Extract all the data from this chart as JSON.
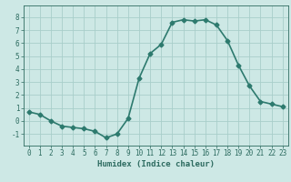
{
  "x": [
    0,
    1,
    2,
    3,
    4,
    5,
    6,
    7,
    8,
    9,
    10,
    11,
    12,
    13,
    14,
    15,
    16,
    17,
    18,
    19,
    20,
    21,
    22,
    23
  ],
  "y": [
    0.7,
    0.5,
    0.0,
    -0.4,
    -0.5,
    -0.6,
    -0.8,
    -1.3,
    -1.0,
    0.2,
    3.3,
    5.2,
    5.9,
    7.6,
    7.8,
    7.7,
    7.8,
    7.4,
    6.2,
    4.3,
    2.7,
    1.5,
    1.3,
    1.1
  ],
  "line_color": "#2d7a6e",
  "marker": "D",
  "markersize": 2.5,
  "linewidth": 1.2,
  "xlabel": "Humidex (Indice chaleur)",
  "xlim": [
    -0.5,
    23.5
  ],
  "ylim": [
    -1.9,
    8.9
  ],
  "yticks": [
    -1,
    0,
    1,
    2,
    3,
    4,
    5,
    6,
    7,
    8
  ],
  "xticks": [
    0,
    1,
    2,
    3,
    4,
    5,
    6,
    7,
    8,
    9,
    10,
    11,
    12,
    13,
    14,
    15,
    16,
    17,
    18,
    19,
    20,
    21,
    22,
    23
  ],
  "bg_color": "#cde8e5",
  "grid_color": "#a8ceca",
  "label_color": "#2d6b60",
  "tick_color": "#2d6b60",
  "xlabel_fontsize": 6.5,
  "tick_fontsize": 5.5
}
